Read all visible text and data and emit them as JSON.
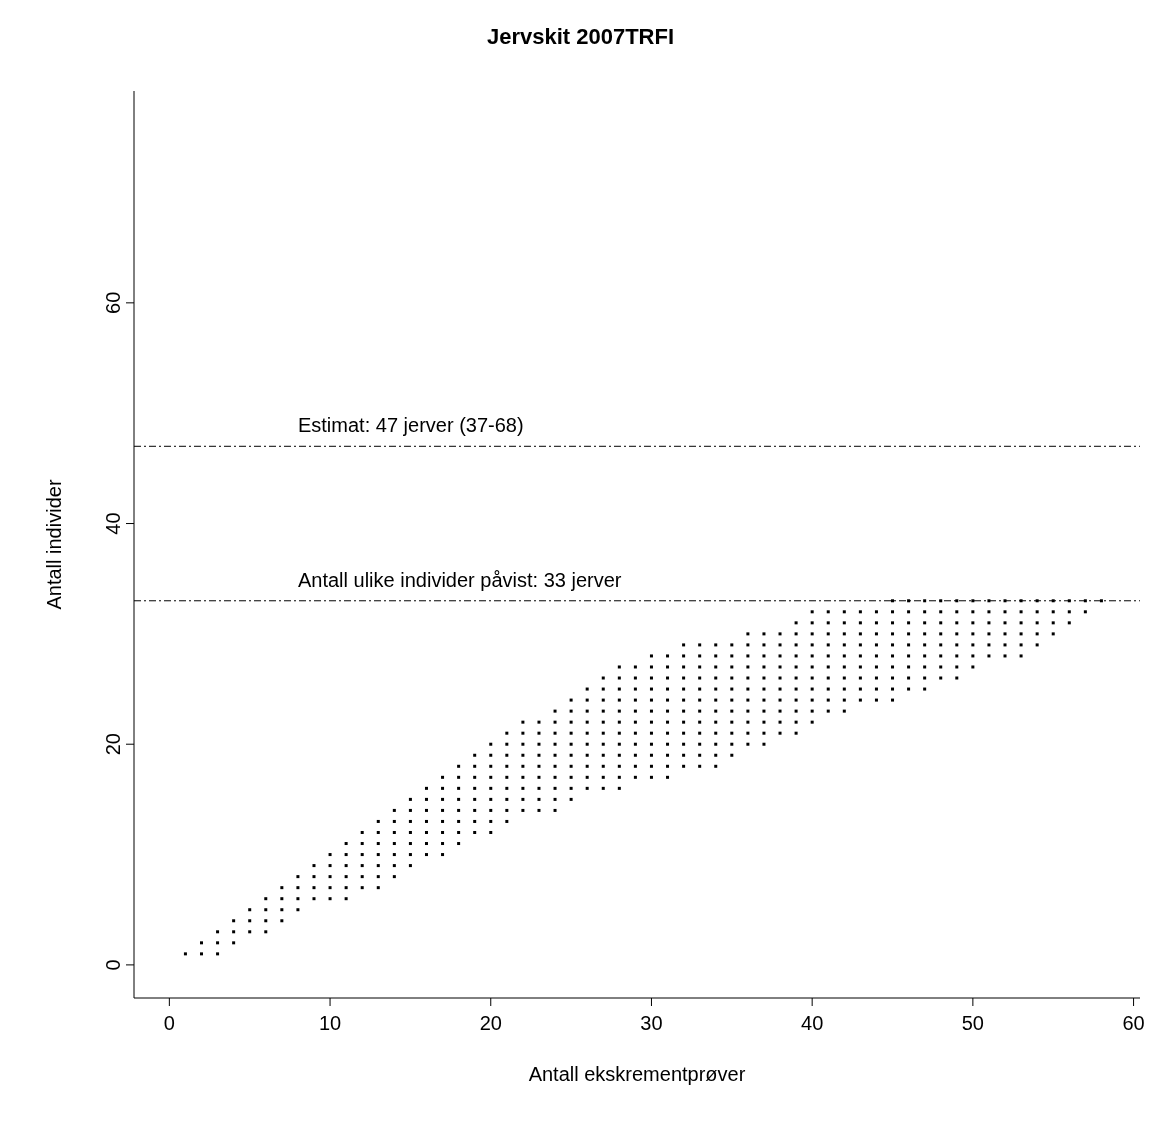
{
  "chart_data": {
    "type": "scatter",
    "title": "Jervskit 2007TRFI",
    "xlabel": "Antall ekskrementprøver",
    "ylabel": "Antall individer",
    "xlim": [
      -2.2,
      60.4
    ],
    "xticks": [
      0,
      10,
      20,
      30,
      40,
      50,
      60
    ],
    "ylim": [
      -3,
      79.2
    ],
    "yticks": [
      0,
      20,
      40,
      60
    ],
    "marker": "square",
    "grid": false,
    "legend": false,
    "ref_lines": [
      {
        "axis": "y",
        "value": 47,
        "label": "Estimat: 47 jerver (37-68)",
        "color": "#000000",
        "line_style": "dashed"
      },
      {
        "axis": "y",
        "value": 33,
        "label": "Antall ulike individer påvist: 33 jerver",
        "color": "#000000",
        "line_style": "dashed"
      }
    ],
    "series": [
      {
        "color": "#000000",
        "x": [
          1,
          2,
          2,
          3,
          3,
          3,
          4,
          4,
          4,
          5,
          5,
          5,
          6,
          6,
          6,
          6,
          7,
          7,
          7,
          7,
          8,
          8,
          8,
          8,
          9,
          9,
          9,
          9,
          10,
          10,
          10,
          10,
          10,
          11,
          11,
          11,
          11,
          11,
          11,
          12,
          12,
          12,
          12,
          12,
          12,
          13,
          13,
          13,
          13,
          13,
          13,
          13,
          14,
          14,
          14,
          14,
          14,
          14,
          14,
          15,
          15,
          15,
          15,
          15,
          15,
          15,
          16,
          16,
          16,
          16,
          16,
          16,
          16,
          17,
          17,
          17,
          17,
          17,
          17,
          17,
          17,
          18,
          18,
          18,
          18,
          18,
          18,
          18,
          18,
          19,
          19,
          19,
          19,
          19,
          19,
          19,
          19,
          20,
          20,
          20,
          20,
          20,
          20,
          20,
          20,
          20,
          21,
          21,
          21,
          21,
          21,
          21,
          21,
          21,
          21,
          22,
          22,
          22,
          22,
          22,
          22,
          22,
          22,
          22,
          23,
          23,
          23,
          23,
          23,
          23,
          23,
          23,
          23,
          24,
          24,
          24,
          24,
          24,
          24,
          24,
          24,
          24,
          24,
          25,
          25,
          25,
          25,
          25,
          25,
          25,
          25,
          25,
          25,
          26,
          26,
          26,
          26,
          26,
          26,
          26,
          26,
          26,
          26,
          27,
          27,
          27,
          27,
          27,
          27,
          27,
          27,
          27,
          27,
          27,
          28,
          28,
          28,
          28,
          28,
          28,
          28,
          28,
          28,
          28,
          28,
          28,
          29,
          29,
          29,
          29,
          29,
          29,
          29,
          29,
          29,
          29,
          29,
          30,
          30,
          30,
          30,
          30,
          30,
          30,
          30,
          30,
          30,
          30,
          30,
          31,
          31,
          31,
          31,
          31,
          31,
          31,
          31,
          31,
          31,
          31,
          31,
          32,
          32,
          32,
          32,
          32,
          32,
          32,
          32,
          32,
          32,
          32,
          32,
          33,
          33,
          33,
          33,
          33,
          33,
          33,
          33,
          33,
          33,
          33,
          33,
          34,
          34,
          34,
          34,
          34,
          34,
          34,
          34,
          34,
          34,
          34,
          34,
          35,
          35,
          35,
          35,
          35,
          35,
          35,
          35,
          35,
          35,
          35,
          36,
          36,
          36,
          36,
          36,
          36,
          36,
          36,
          36,
          36,
          36,
          37,
          37,
          37,
          37,
          37,
          37,
          37,
          37,
          37,
          37,
          37,
          38,
          38,
          38,
          38,
          38,
          38,
          38,
          38,
          38,
          38,
          39,
          39,
          39,
          39,
          39,
          39,
          39,
          39,
          39,
          39,
          39,
          40,
          40,
          40,
          40,
          40,
          40,
          40,
          40,
          40,
          40,
          40,
          41,
          41,
          41,
          41,
          41,
          41,
          41,
          41,
          41,
          41,
          42,
          42,
          42,
          42,
          42,
          42,
          42,
          42,
          42,
          42,
          43,
          43,
          43,
          43,
          43,
          43,
          43,
          43,
          43,
          44,
          44,
          44,
          44,
          44,
          44,
          44,
          44,
          44,
          45,
          45,
          45,
          45,
          45,
          45,
          45,
          45,
          45,
          45,
          46,
          46,
          46,
          46,
          46,
          46,
          46,
          46,
          46,
          47,
          47,
          47,
          47,
          47,
          47,
          47,
          47,
          47,
          48,
          48,
          48,
          48,
          48,
          48,
          48,
          48,
          49,
          49,
          49,
          49,
          49,
          49,
          49,
          49,
          50,
          50,
          50,
          50,
          50,
          50,
          50,
          51,
          51,
          51,
          51,
          51,
          51,
          52,
          52,
          52,
          52,
          52,
          52,
          53,
          53,
          53,
          53,
          53,
          53,
          54,
          54,
          54,
          54,
          54,
          55,
          55,
          55,
          55,
          56,
          56,
          56,
          57,
          57,
          58
        ],
        "values": [
          1,
          1,
          2,
          1,
          2,
          3,
          2,
          3,
          4,
          3,
          4,
          5,
          3,
          4,
          5,
          6,
          4,
          5,
          6,
          7,
          5,
          6,
          7,
          8,
          6,
          7,
          8,
          9,
          6,
          7,
          8,
          9,
          10,
          6,
          7,
          8,
          9,
          10,
          11,
          7,
          8,
          9,
          10,
          11,
          12,
          7,
          8,
          9,
          10,
          11,
          12,
          13,
          8,
          9,
          10,
          11,
          12,
          13,
          14,
          9,
          10,
          11,
          12,
          13,
          14,
          15,
          10,
          11,
          12,
          13,
          14,
          15,
          16,
          10,
          11,
          12,
          13,
          14,
          15,
          16,
          17,
          11,
          12,
          13,
          14,
          15,
          16,
          17,
          18,
          12,
          13,
          14,
          15,
          16,
          17,
          18,
          19,
          12,
          13,
          14,
          15,
          16,
          17,
          18,
          19,
          20,
          13,
          14,
          15,
          16,
          17,
          18,
          19,
          20,
          21,
          14,
          15,
          16,
          17,
          18,
          19,
          20,
          21,
          22,
          14,
          15,
          16,
          17,
          18,
          19,
          20,
          21,
          22,
          14,
          15,
          16,
          17,
          18,
          19,
          20,
          21,
          22,
          23,
          15,
          16,
          17,
          18,
          19,
          20,
          21,
          22,
          23,
          24,
          16,
          17,
          18,
          19,
          20,
          21,
          22,
          23,
          24,
          25,
          16,
          17,
          18,
          19,
          20,
          21,
          22,
          23,
          24,
          25,
          26,
          16,
          17,
          18,
          19,
          20,
          21,
          22,
          23,
          24,
          25,
          26,
          27,
          17,
          18,
          19,
          20,
          21,
          22,
          23,
          24,
          25,
          26,
          27,
          17,
          18,
          19,
          20,
          21,
          22,
          23,
          24,
          25,
          26,
          27,
          28,
          17,
          18,
          19,
          20,
          21,
          22,
          23,
          24,
          25,
          26,
          27,
          28,
          18,
          19,
          20,
          21,
          22,
          23,
          24,
          25,
          26,
          27,
          28,
          29,
          18,
          19,
          20,
          21,
          22,
          23,
          24,
          25,
          26,
          27,
          28,
          29,
          18,
          19,
          20,
          21,
          22,
          23,
          24,
          25,
          26,
          27,
          28,
          29,
          19,
          20,
          21,
          22,
          23,
          24,
          25,
          26,
          27,
          28,
          29,
          20,
          21,
          22,
          23,
          24,
          25,
          26,
          27,
          28,
          29,
          30,
          20,
          21,
          22,
          23,
          24,
          25,
          26,
          27,
          28,
          29,
          30,
          21,
          22,
          23,
          24,
          25,
          26,
          27,
          28,
          29,
          30,
          21,
          22,
          23,
          24,
          25,
          26,
          27,
          28,
          29,
          30,
          31,
          22,
          23,
          24,
          25,
          26,
          27,
          28,
          29,
          30,
          31,
          32,
          23,
          24,
          25,
          26,
          27,
          28,
          29,
          30,
          31,
          32,
          23,
          24,
          25,
          26,
          27,
          28,
          29,
          30,
          31,
          32,
          24,
          25,
          26,
          27,
          28,
          29,
          30,
          31,
          32,
          24,
          25,
          26,
          27,
          28,
          29,
          30,
          31,
          32,
          24,
          25,
          26,
          27,
          28,
          29,
          30,
          31,
          32,
          33,
          25,
          26,
          27,
          28,
          29,
          30,
          31,
          32,
          33,
          25,
          26,
          27,
          28,
          29,
          30,
          31,
          32,
          33,
          26,
          27,
          28,
          29,
          30,
          31,
          32,
          33,
          26,
          27,
          28,
          29,
          30,
          31,
          32,
          33,
          27,
          28,
          29,
          30,
          31,
          32,
          33,
          28,
          29,
          30,
          31,
          32,
          33,
          28,
          29,
          30,
          31,
          32,
          33,
          28,
          29,
          30,
          31,
          32,
          33,
          29,
          30,
          31,
          32,
          33,
          30,
          31,
          32,
          33,
          31,
          32,
          33,
          32,
          33,
          33
        ]
      }
    ]
  }
}
